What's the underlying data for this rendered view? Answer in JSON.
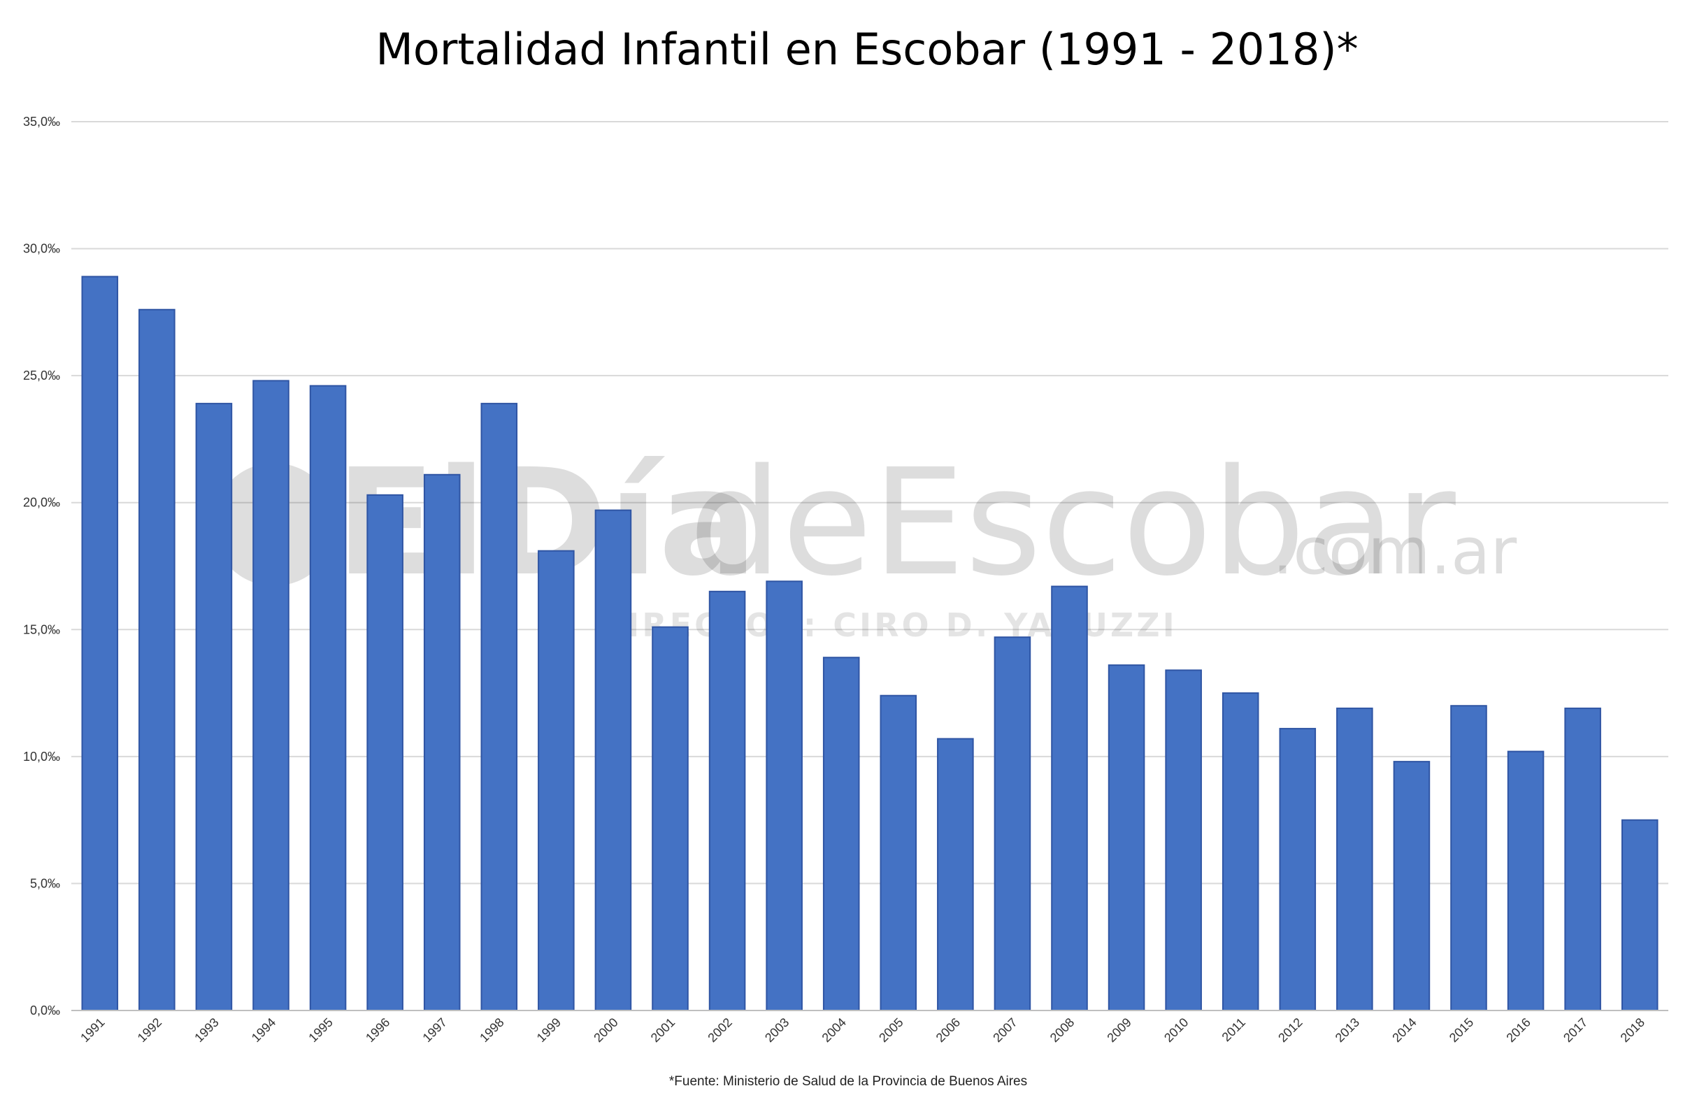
{
  "chart_data": {
    "type": "bar",
    "title": "Mortalidad Infantil en Escobar (1991 - 2018)*",
    "categories": [
      "1991",
      "1992",
      "1993",
      "1994",
      "1995",
      "1996",
      "1997",
      "1998",
      "1999",
      "2000",
      "2001",
      "2002",
      "2003",
      "2004",
      "2005",
      "2006",
      "2007",
      "2008",
      "2009",
      "2010",
      "2011",
      "2012",
      "2013",
      "2014",
      "2015",
      "2016",
      "2017",
      "2018"
    ],
    "values": [
      28.9,
      27.6,
      23.9,
      24.8,
      24.6,
      20.3,
      21.1,
      23.9,
      18.1,
      19.7,
      15.1,
      16.5,
      16.9,
      13.9,
      12.4,
      10.7,
      14.7,
      16.7,
      13.6,
      13.4,
      12.5,
      11.1,
      11.9,
      9.8,
      12.0,
      10.2,
      11.9,
      7.5
    ],
    "ylim": [
      0,
      35
    ],
    "yticks": [
      0,
      5,
      10,
      15,
      20,
      25,
      30,
      35
    ],
    "ytick_labels": [
      "0,0‰",
      "5,0‰",
      "10,0‰",
      "15,0‰",
      "20,0‰",
      "25,0‰",
      "30,0‰",
      "35,0‰"
    ],
    "xlabel": "",
    "ylabel": "",
    "grid": true,
    "legend": "none",
    "bar_color": "#4472c4",
    "bar_edge_color": "#2f55a4",
    "grid_color": "#d9d9d9",
    "source_note": "*Fuente: Ministerio de Salud de la Provincia de Buenos Aires"
  },
  "watermark": {
    "brand_bold": "ElDía",
    "brand_light": "deEscobar",
    "domain": ".com.ar",
    "director": "DIRECTOR: CIRO D. YACUZZI",
    "logo_letter": "e"
  }
}
